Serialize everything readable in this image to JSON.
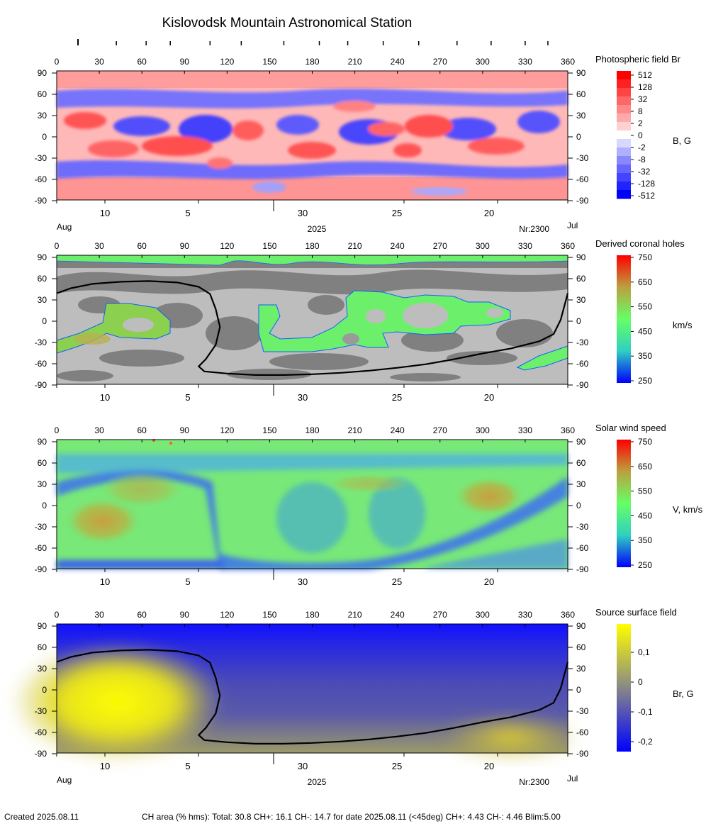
{
  "title": "Kislovodsk Mountain Astronomical Station",
  "top_lon_ticks": [
    "0",
    "30",
    "60",
    "90",
    "120",
    "150",
    "180",
    "210",
    "240",
    "270",
    "300",
    "330",
    "360"
  ],
  "lat_ticks": [
    "90",
    "60",
    "30",
    "0",
    "-30",
    "-60",
    "-90"
  ],
  "date_ticks": [
    "10",
    "5",
    "30",
    "25",
    "20"
  ],
  "month_left": "Aug",
  "month_right": "Jul",
  "year": "2025",
  "rotation": "Nr:2300",
  "footer": {
    "created": "Created  2025.08.11",
    "summary": "CH area (% hms): Total: 30.8 CH+: 16.1   CH-: 14.7 for date 2025.08.11 (<45deg) CH+: 4.43    CH-: 4.46 Blim:5.00"
  },
  "panels": [
    {
      "id": "photospheric",
      "title": "Photospheric field Br",
      "unit": "B, G",
      "colors": [
        "#0000ff",
        "#ffffff",
        "#ff0000"
      ],
      "scale_labels": [
        "512",
        "128",
        "32",
        "8",
        "2",
        "0",
        "-2",
        "-8",
        "-32",
        "-128",
        "-512"
      ],
      "show_month_row": true
    },
    {
      "id": "coronal-holes",
      "title": "Derived coronal holes",
      "unit": "km/s",
      "colors": [
        "#0000ff",
        "#2fd0c0",
        "#66ff66",
        "#bba040",
        "#ff0000"
      ],
      "scale_labels": [
        "750",
        "650",
        "550",
        "450",
        "350",
        "250"
      ],
      "show_month_row": false
    },
    {
      "id": "solar-wind",
      "title": "Solar wind speed",
      "unit": "V, km/s",
      "colors": [
        "#0000ff",
        "#2fd0c0",
        "#66ff66",
        "#bba040",
        "#ff0000"
      ],
      "scale_labels": [
        "750",
        "650",
        "550",
        "450",
        "350",
        "250"
      ],
      "show_month_row": false
    },
    {
      "id": "source-surface",
      "title": "Source surface field",
      "unit": "Br, G",
      "colors": [
        "#0000ff",
        "#888888",
        "#ffff00"
      ],
      "scale_labels": [
        "0,1",
        "0",
        "-0,1",
        "-0,2"
      ],
      "show_month_row": true
    }
  ],
  "chart_data": {
    "type": "heatmap",
    "x_axis": {
      "range": [
        0,
        360
      ]
    },
    "y_axis": {
      "range": [
        -90,
        90
      ]
    },
    "neutral_line": {
      "lon": [
        0,
        10,
        25,
        45,
        65,
        85,
        100,
        108,
        112,
        115,
        112,
        105,
        100,
        104,
        120,
        140,
        160,
        180,
        200,
        220,
        240,
        260,
        280,
        300,
        320,
        340,
        350,
        355,
        360
      ],
      "lat": [
        37,
        44,
        50,
        53,
        54,
        52,
        46,
        36,
        15,
        -10,
        -35,
        -55,
        -65,
        -72,
        -75,
        -77,
        -77,
        -76,
        -74,
        -71,
        -67,
        -62,
        -55,
        -47,
        -40,
        -30,
        -20,
        0,
        37
      ]
    },
    "sunspot_marks_lon": [
      15,
      42,
      63,
      80,
      108,
      130,
      160,
      185,
      205,
      230,
      255,
      282,
      306,
      330,
      346
    ]
  }
}
